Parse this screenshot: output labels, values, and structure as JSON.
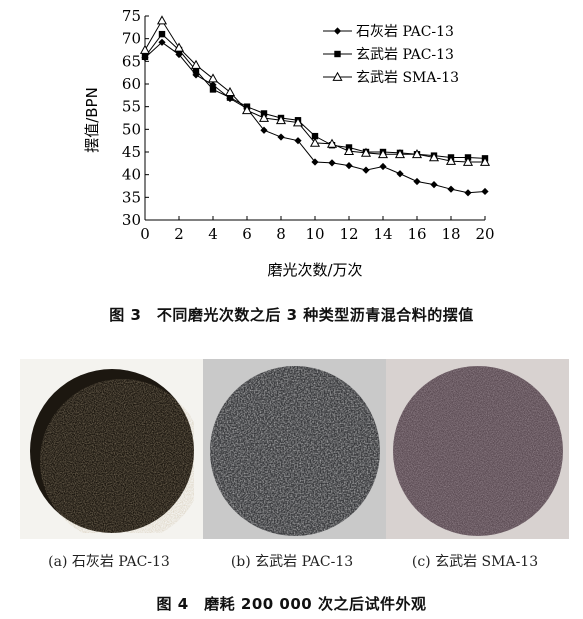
{
  "chart_data": {
    "type": "line",
    "xlabel": "磨光次数/万次",
    "ylabel": "摆值/BPN",
    "xlim": [
      0,
      20
    ],
    "ylim": [
      30,
      75
    ],
    "xticks": [
      0,
      2,
      4,
      6,
      8,
      10,
      12,
      14,
      16,
      18,
      20
    ],
    "yticks": [
      30,
      35,
      40,
      45,
      50,
      55,
      60,
      65,
      70,
      75
    ],
    "legend_position": "top-right",
    "grid": false,
    "x": [
      0,
      1,
      2,
      3,
      4,
      5,
      6,
      7,
      8,
      9,
      10,
      11,
      12,
      13,
      14,
      15,
      16,
      17,
      18,
      19,
      20
    ],
    "series": [
      {
        "name": "石灰岩 PAC-13",
        "marker": "diamond",
        "values": [
          65.8,
          69.2,
          66.5,
          62.0,
          59.8,
          56.8,
          54.6,
          49.8,
          48.3,
          47.5,
          42.8,
          42.6,
          42.0,
          41.0,
          41.8,
          40.2,
          38.5,
          37.8,
          36.8,
          36.0,
          36.3
        ]
      },
      {
        "name": "玄武岩 PAC-13",
        "marker": "square",
        "values": [
          66.0,
          71.0,
          67.5,
          63.0,
          58.8,
          57.0,
          55.0,
          53.5,
          52.5,
          52.0,
          48.5,
          46.5,
          46.0,
          45.0,
          45.0,
          44.8,
          44.5,
          44.2,
          43.8,
          43.8,
          43.6
        ]
      },
      {
        "name": "玄武岩 SMA-13",
        "marker": "triangle-open",
        "values": [
          67.5,
          74.0,
          68.0,
          64.2,
          61.2,
          58.2,
          54.2,
          52.5,
          52.0,
          51.5,
          47.0,
          46.8,
          45.2,
          44.8,
          44.5,
          44.5,
          44.5,
          43.8,
          43.0,
          42.8,
          42.8
        ]
      }
    ]
  },
  "figure3_caption": "图 3　不同磨光次数之后 3 种类型沥青混合料的摆值",
  "figure4": {
    "panels": [
      {
        "label": "(a) 石灰岩 PAC-13"
      },
      {
        "label": "(b) 玄武岩 PAC-13"
      },
      {
        "label": "(c) 玄武岩 SMA-13"
      }
    ],
    "caption": "图 4　磨耗 200 000 次之后试件外观"
  }
}
